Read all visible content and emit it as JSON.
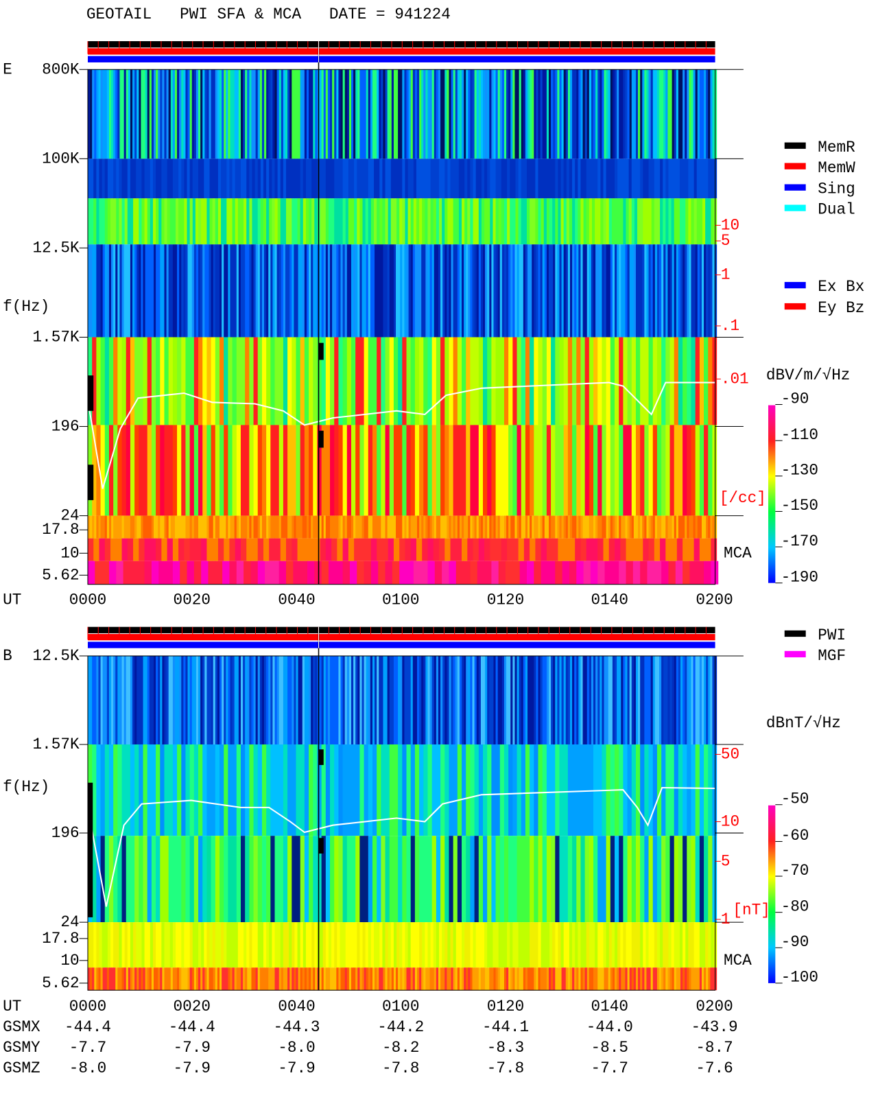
{
  "header": {
    "title": "GEOTAIL   PWI SFA & MCA   DATE = 941224"
  },
  "panels": [
    {
      "label": "E",
      "freq_labels": [
        "800K",
        "100K",
        "12.5K",
        "1.57K",
        "196",
        "24",
        "17.8",
        "10",
        "5.62"
      ],
      "axis_label": "f(Hz)",
      "time_label": "UT",
      "times": [
        "0000",
        "0020",
        "0040",
        "0100",
        "0120",
        "0140",
        "0200"
      ],
      "right_labels": [
        "10",
        "5",
        "1",
        ".1",
        ".01",
        "[/cc]"
      ],
      "mca": "MCA",
      "legend": [
        {
          "text": "MemR",
          "color": "#000000"
        },
        {
          "text": "MemW",
          "color": "#ff0000"
        },
        {
          "text": "Sing",
          "color": "#0000ff"
        },
        {
          "text": "Dual",
          "color": "#00ffff"
        }
      ],
      "legend2": [
        {
          "text": "Ex Bx",
          "color": "#0000ff"
        },
        {
          "text": "Ey Bz",
          "color": "#ff0000"
        }
      ],
      "unit": "dBV/m/√Hz",
      "colorbar_labels": [
        "-90",
        "-110",
        "-130",
        "-150",
        "-170",
        "-190"
      ]
    },
    {
      "label": "B",
      "freq_labels": [
        "12.5K",
        "1.57K",
        "196",
        "24",
        "17.8",
        "10",
        "5.62"
      ],
      "axis_label": "f(Hz)",
      "time_label": "UT",
      "times": [
        "0000",
        "0020",
        "0040",
        "0100",
        "0120",
        "0140",
        "0200"
      ],
      "right_labels": [
        "50",
        "10",
        "5",
        "1",
        "[nT]"
      ],
      "mca": "MCA",
      "legend": [
        {
          "text": "PWI",
          "color": "#000000"
        },
        {
          "text": "MGF",
          "color": "#ff00ff"
        }
      ],
      "legend2": [],
      "unit": "dBnT/√Hz",
      "colorbar_labels": [
        "-50",
        "-60",
        "-70",
        "-80",
        "-90",
        "-100"
      ]
    }
  ],
  "orbit": [
    {
      "label": "GSMX",
      "values": [
        "-44.4",
        "-44.4",
        "-44.3",
        "-44.2",
        "-44.1",
        "-44.0",
        "-43.9"
      ]
    },
    {
      "label": "GSMY",
      "values": [
        "-7.7",
        "-7.9",
        "-8.0",
        "-8.2",
        "-8.3",
        "-8.5",
        "-8.7"
      ]
    },
    {
      "label": "GSMZ",
      "values": [
        "-8.0",
        "-7.9",
        "-7.9",
        "-7.8",
        "-7.8",
        "-7.7",
        "-7.6"
      ]
    }
  ]
}
